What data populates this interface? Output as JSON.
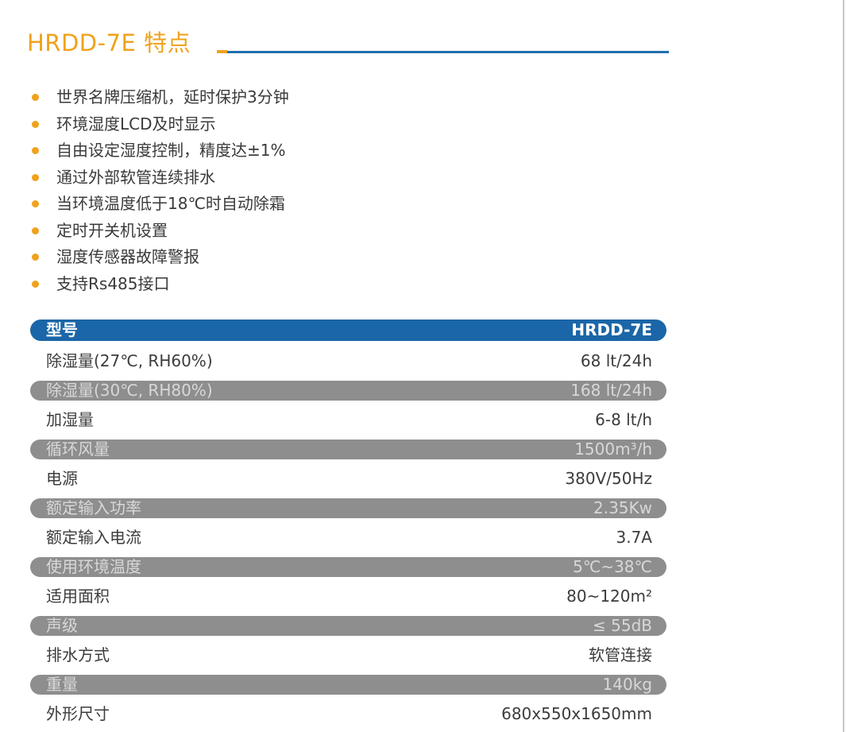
{
  "title": "HRDD-7E 特点",
  "colors": {
    "accent_orange": "#f0a21c",
    "accent_blue": "#1f6fae",
    "header_bar": "#1b66a8",
    "shaded_bar": "#8e8e8e"
  },
  "features": [
    "世界名牌压缩机，延时保护3分钟",
    "环境湿度LCD及时显示",
    "自由设定湿度控制，精度达±1%",
    "通过外部软管连续排水",
    "当环境温度低于18℃时自动除霜",
    "定时开关机设置",
    "湿度传感器故障警报",
    "支持Rs485接口"
  ],
  "specs": {
    "header": {
      "label": "型号",
      "value": "HRDD-7E"
    },
    "rows": [
      {
        "label": "除湿量(27℃, RH60%)",
        "value": "68 lt/24h"
      },
      {
        "label": "除湿量(30℃, RH80%)",
        "value": "168 lt/24h"
      },
      {
        "label": "加湿量",
        "value": "6-8 lt/h"
      },
      {
        "label": "循环风量",
        "value": "1500m³/h"
      },
      {
        "label": "电源",
        "value": "380V/50Hz"
      },
      {
        "label": "额定输入功率",
        "value": "2.35Kw"
      },
      {
        "label": "额定输入电流",
        "value": "3.7A"
      },
      {
        "label": "使用环境温度",
        "value": "5℃~38℃"
      },
      {
        "label": "适用面积",
        "value": "80~120m²"
      },
      {
        "label": "声级",
        "value": "≤ 55dB"
      },
      {
        "label": "排水方式",
        "value": "软管连接"
      },
      {
        "label": "重量",
        "value": "140kg"
      },
      {
        "label": "外形尺寸",
        "value": "680x550x1650mm"
      }
    ]
  }
}
